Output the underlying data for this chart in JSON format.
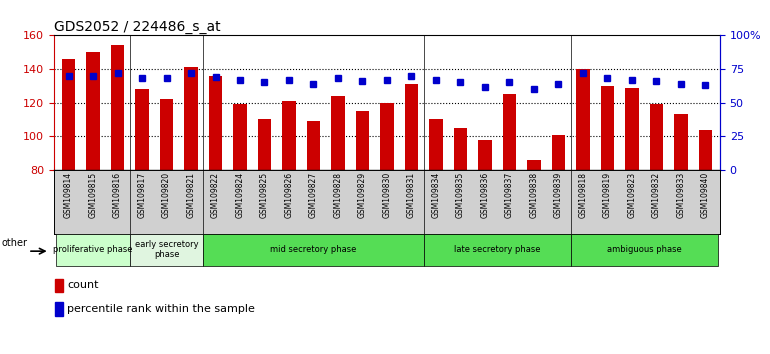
{
  "title": "GDS2052 / 224486_s_at",
  "samples": [
    "GSM109814",
    "GSM109815",
    "GSM109816",
    "GSM109817",
    "GSM109820",
    "GSM109821",
    "GSM109822",
    "GSM109824",
    "GSM109825",
    "GSM109826",
    "GSM109827",
    "GSM109828",
    "GSM109829",
    "GSM109830",
    "GSM109831",
    "GSM109834",
    "GSM109835",
    "GSM109836",
    "GSM109837",
    "GSM109838",
    "GSM109839",
    "GSM109818",
    "GSM109819",
    "GSM109823",
    "GSM109832",
    "GSM109833",
    "GSM109840"
  ],
  "counts": [
    146,
    150,
    154,
    128,
    122,
    141,
    136,
    119,
    110,
    121,
    109,
    124,
    115,
    120,
    131,
    110,
    105,
    98,
    125,
    86,
    101,
    140,
    130,
    129,
    119,
    113,
    104
  ],
  "percentile": [
    70,
    70,
    72,
    68,
    68,
    72,
    69,
    67,
    65,
    67,
    64,
    68,
    66,
    67,
    70,
    67,
    65,
    62,
    65,
    60,
    64,
    72,
    68,
    67,
    66,
    64,
    63
  ],
  "bar_color": "#cc0000",
  "dot_color": "#0000cc",
  "ylim_left": [
    80,
    160
  ],
  "yticks_left": [
    80,
    100,
    120,
    140,
    160
  ],
  "yticks_right_vals": [
    0,
    25,
    50,
    75,
    100
  ],
  "ytick_labels_right": [
    "0",
    "25",
    "50",
    "75",
    "100%"
  ],
  "phase_data": [
    {
      "label": "proliferative phase",
      "start": 0,
      "end": 3,
      "color": "#ccffcc"
    },
    {
      "label": "early secretory\nphase",
      "start": 3,
      "end": 6,
      "color": "#e0f5e0"
    },
    {
      "label": "mid secretory phase",
      "start": 6,
      "end": 15,
      "color": "#55dd55"
    },
    {
      "label": "late secretory phase",
      "start": 15,
      "end": 21,
      "color": "#55dd55"
    },
    {
      "label": "ambiguous phase",
      "start": 21,
      "end": 27,
      "color": "#55dd55"
    }
  ],
  "phase_dividers": [
    3,
    6,
    15,
    21
  ],
  "legend_count_label": "count",
  "legend_percentile_label": "percentile rank within the sample",
  "other_label": "other",
  "tick_bg_color": "#d0d0d0",
  "grid_dotted_at": [
    100,
    120,
    140
  ]
}
